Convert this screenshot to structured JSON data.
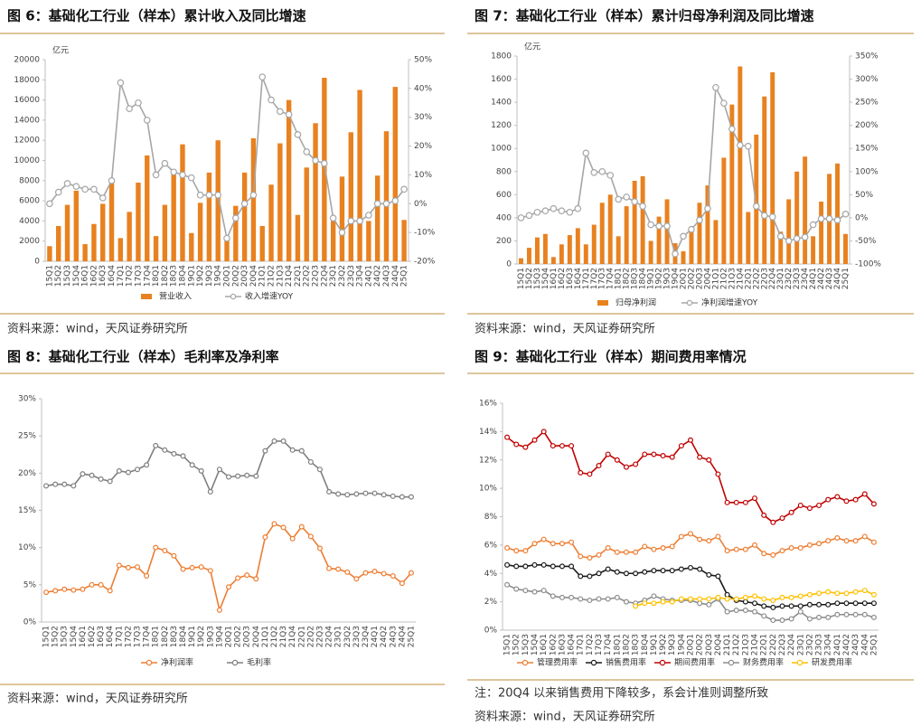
{
  "chart_data": [
    {
      "type": "combo",
      "title": "图 6：基础化工行业（样本）累计收入及同比增速",
      "y_label": "亿元",
      "source": "资料来源：wind，天风证券研究所",
      "categories": [
        "15Q1",
        "15Q2",
        "15Q3",
        "15Q4",
        "16Q1",
        "16Q2",
        "16Q3",
        "16Q4",
        "17Q1",
        "17Q2",
        "17Q3",
        "17Q4",
        "18Q1",
        "18Q2",
        "18Q3",
        "18Q4",
        "19Q1",
        "19Q2",
        "19Q3",
        "19Q4",
        "20Q1",
        "20Q2",
        "20Q3",
        "20Q4",
        "21Q1",
        "21Q2",
        "21Q3",
        "21Q4",
        "22Q1",
        "22Q2",
        "22Q3",
        "22Q4",
        "23Q1",
        "23Q2",
        "23Q3",
        "23Q4",
        "24Q1",
        "24Q2",
        "24Q3",
        "24Q4",
        "25Q1"
      ],
      "ylim": [
        0,
        20000
      ],
      "yticks": [
        0,
        2000,
        4000,
        6000,
        8000,
        10000,
        12000,
        14000,
        16000,
        18000,
        20000
      ],
      "y2lim": [
        -20,
        50
      ],
      "y2ticks": [
        {
          "value": -20,
          "label": "-20%"
        },
        {
          "value": -10,
          "label": "-10%"
        },
        {
          "value": 0,
          "label": "0%"
        },
        {
          "value": 10,
          "label": "10%"
        },
        {
          "value": 20,
          "label": "20%"
        },
        {
          "value": 30,
          "label": "30%"
        },
        {
          "value": 40,
          "label": "40%"
        },
        {
          "value": 50,
          "label": "50%"
        }
      ],
      "series": [
        {
          "name": "营业收入",
          "type": "bar",
          "color": "#e8811f",
          "values": [
            1500,
            3500,
            5600,
            7000,
            1700,
            3700,
            5700,
            7900,
            2300,
            4900,
            7800,
            10500,
            2500,
            5600,
            8700,
            11600,
            2800,
            5800,
            8800,
            12000,
            2200,
            5500,
            8800,
            12200,
            3500,
            7600,
            11700,
            16000,
            4600,
            9300,
            13700,
            18200,
            4000,
            8400,
            12800,
            17000,
            4000,
            8500,
            12900,
            17300,
            4100
          ]
        },
        {
          "name": "收入增速YOY",
          "type": "line",
          "axis": "y2",
          "color": "#a6a6a6",
          "values": [
            0,
            4,
            7,
            6,
            5,
            5,
            2,
            8,
            42,
            33,
            35,
            29,
            10,
            14,
            11,
            10,
            9,
            3,
            3,
            3,
            -12,
            -5,
            0,
            3,
            44,
            36,
            32,
            31,
            24,
            18,
            15,
            14,
            -5,
            -10,
            -6,
            -6,
            -4,
            0,
            0,
            1,
            5
          ]
        }
      ]
    },
    {
      "type": "combo",
      "title": "图 7：基础化工行业（样本）累计归母净利润及同比增速",
      "y_label": "亿元",
      "source": "资料来源：wind，天风证券研究所",
      "categories": [
        "15Q1",
        "15Q2",
        "15Q3",
        "15Q4",
        "16Q1",
        "16Q2",
        "16Q3",
        "16Q4",
        "17Q1",
        "17Q2",
        "17Q3",
        "17Q4",
        "18Q1",
        "18Q2",
        "18Q3",
        "18Q4",
        "19Q1",
        "19Q2",
        "19Q3",
        "19Q4",
        "20Q1",
        "20Q2",
        "20Q3",
        "20Q4",
        "21Q1",
        "21Q2",
        "21Q3",
        "21Q4",
        "22Q1",
        "22Q2",
        "22Q3",
        "22Q4",
        "23Q1",
        "23Q2",
        "23Q3",
        "23Q4",
        "24Q1",
        "24Q2",
        "24Q3",
        "24Q4",
        "25Q1"
      ],
      "ylim": [
        0,
        1800
      ],
      "yticks": [
        0,
        200,
        400,
        600,
        800,
        1000,
        1200,
        1400,
        1600,
        1800
      ],
      "y2lim": [
        -100,
        350
      ],
      "y2ticks": [
        {
          "value": -100,
          "label": "-100%"
        },
        {
          "value": -50,
          "label": "-50%"
        },
        {
          "value": 0,
          "label": "0%"
        },
        {
          "value": 50,
          "label": "50%"
        },
        {
          "value": 100,
          "label": "100%"
        },
        {
          "value": 150,
          "label": "150%"
        },
        {
          "value": 200,
          "label": "200%"
        },
        {
          "value": 250,
          "label": "250%"
        },
        {
          "value": 300,
          "label": "300%"
        },
        {
          "value": 350,
          "label": "350%"
        }
      ],
      "series": [
        {
          "name": "归母净利润",
          "type": "bar",
          "color": "#e8811f",
          "values": [
            50,
            140,
            230,
            260,
            60,
            170,
            250,
            310,
            170,
            340,
            530,
            600,
            240,
            500,
            720,
            760,
            200,
            410,
            560,
            180,
            110,
            310,
            530,
            680,
            380,
            920,
            1380,
            1710,
            450,
            1120,
            1450,
            1660,
            280,
            560,
            800,
            930,
            240,
            540,
            780,
            870,
            260
          ]
        },
        {
          "name": "净利润增速YOY",
          "type": "line",
          "axis": "y2",
          "color": "#a6a6a6",
          "values": [
            0,
            5,
            12,
            15,
            20,
            15,
            12,
            20,
            140,
            98,
            100,
            92,
            40,
            45,
            35,
            25,
            -15,
            -18,
            -18,
            -78,
            -40,
            -25,
            -5,
            20,
            282,
            248,
            192,
            157,
            155,
            25,
            5,
            2,
            -40,
            -50,
            -45,
            -42,
            -15,
            -2,
            -2,
            -5,
            8
          ]
        }
      ]
    },
    {
      "type": "line",
      "title": "图 8：基础化工行业（样本）毛利率及净利率",
      "source": "资料来源：wind，天风证券研究所",
      "categories": [
        "15Q1",
        "15Q2",
        "15Q3",
        "15Q4",
        "16Q1",
        "16Q2",
        "16Q3",
        "16Q4",
        "17Q1",
        "17Q2",
        "17Q3",
        "17Q4",
        "18Q1",
        "18Q2",
        "18Q3",
        "18Q4",
        "19Q1",
        "19Q2",
        "19Q3",
        "19Q4",
        "20Q1",
        "20Q2",
        "20Q3",
        "20Q4",
        "21Q1",
        "21Q2",
        "21Q3",
        "21Q4",
        "22Q1",
        "22Q2",
        "22Q3",
        "22Q4",
        "23Q1",
        "23Q2",
        "23Q3",
        "23Q4",
        "24Q1",
        "24Q2",
        "24Q3",
        "24Q4",
        "25Q1"
      ],
      "ylim": [
        0,
        30
      ],
      "yticks": [
        {
          "value": 0,
          "label": "0%"
        },
        {
          "value": 5,
          "label": "5%"
        },
        {
          "value": 10,
          "label": "10%"
        },
        {
          "value": 15,
          "label": "15%"
        },
        {
          "value": 20,
          "label": "20%"
        },
        {
          "value": 25,
          "label": "25%"
        },
        {
          "value": 30,
          "label": "30%"
        }
      ],
      "series": [
        {
          "name": "净利润率",
          "type": "line",
          "color": "#ed7d31",
          "values": [
            4.0,
            4.2,
            4.4,
            4.3,
            4.4,
            5.0,
            5.0,
            4.2,
            7.6,
            7.3,
            7.4,
            6.2,
            10.0,
            9.6,
            8.9,
            7.1,
            7.3,
            7.4,
            6.9,
            1.6,
            4.7,
            5.9,
            6.3,
            5.8,
            11.4,
            13.2,
            12.7,
            11.2,
            12.8,
            11.5,
            9.9,
            7.2,
            7.1,
            6.7,
            5.8,
            6.6,
            6.8,
            6.5,
            6.2,
            5.2,
            6.6
          ]
        },
        {
          "name": "毛利率",
          "type": "line",
          "color": "#7f7f7f",
          "values": [
            18.3,
            18.5,
            18.5,
            18.3,
            19.9,
            19.7,
            19.2,
            18.9,
            20.3,
            20.1,
            20.5,
            21.1,
            23.7,
            23.1,
            22.6,
            22.3,
            21.1,
            20.3,
            17.5,
            20.5,
            19.5,
            19.6,
            19.7,
            19.6,
            23.0,
            24.3,
            24.3,
            23.1,
            23.0,
            21.5,
            20.5,
            17.5,
            17.2,
            17.1,
            17.2,
            17.3,
            17.3,
            17.1,
            16.9,
            16.8,
            16.8
          ]
        }
      ]
    },
    {
      "type": "line",
      "title": "图 9：基础化工行业（样本）期间费用率情况",
      "note": "注：20Q4 以来销售费用下降较多，系会计准则调整所致",
      "source": "资料来源：wind，天风证券研究所",
      "categories": [
        "15Q1",
        "15Q2",
        "15Q3",
        "15Q4",
        "16Q1",
        "16Q2",
        "16Q3",
        "16Q4",
        "17Q1",
        "17Q2",
        "17Q3",
        "17Q4",
        "18Q1",
        "18Q2",
        "18Q3",
        "18Q4",
        "19Q1",
        "19Q2",
        "19Q3",
        "19Q4",
        "20Q1",
        "20Q2",
        "20Q3",
        "20Q4",
        "21Q1",
        "21Q2",
        "21Q3",
        "21Q4",
        "22Q1",
        "22Q2",
        "22Q3",
        "22Q4",
        "23Q1",
        "23Q2",
        "23Q3",
        "23Q4",
        "24Q1",
        "24Q2",
        "24Q3",
        "24Q4",
        "25Q1"
      ],
      "ylim": [
        0,
        16
      ],
      "yticks": [
        {
          "value": 0,
          "label": "0%"
        },
        {
          "value": 2,
          "label": "2%"
        },
        {
          "value": 4,
          "label": "4%"
        },
        {
          "value": 6,
          "label": "6%"
        },
        {
          "value": 8,
          "label": "8%"
        },
        {
          "value": 10,
          "label": "10%"
        },
        {
          "value": 12,
          "label": "12%"
        },
        {
          "value": 14,
          "label": "14%"
        },
        {
          "value": 16,
          "label": "16%"
        }
      ],
      "series": [
        {
          "name": "管理费用率",
          "type": "line",
          "color": "#ed7d31",
          "values": [
            5.8,
            5.6,
            5.6,
            6.1,
            6.4,
            6.1,
            6.1,
            6.2,
            5.2,
            5.1,
            5.3,
            5.8,
            5.5,
            5.5,
            5.5,
            5.9,
            5.7,
            5.8,
            5.9,
            6.6,
            6.8,
            6.4,
            6.3,
            6.6,
            5.6,
            5.7,
            5.7,
            6.0,
            5.4,
            5.3,
            5.6,
            5.8,
            5.8,
            6.0,
            6.1,
            6.3,
            6.5,
            6.3,
            6.3,
            6.6,
            6.2
          ]
        },
        {
          "name": "销售费用率",
          "type": "line",
          "color": "#1a1a1a",
          "values": [
            4.6,
            4.5,
            4.5,
            4.6,
            4.6,
            4.5,
            4.5,
            4.5,
            3.8,
            3.8,
            4.0,
            4.3,
            4.1,
            4.0,
            4.0,
            4.1,
            4.2,
            4.2,
            4.2,
            4.3,
            4.4,
            4.3,
            3.9,
            3.8,
            2.5,
            2.1,
            2.0,
            1.9,
            1.7,
            1.6,
            1.7,
            1.7,
            1.7,
            1.8,
            1.8,
            1.8,
            1.9,
            1.9,
            1.9,
            1.9,
            1.9
          ]
        },
        {
          "name": "期间费用率",
          "type": "line",
          "color": "#c00000",
          "values": [
            13.6,
            13.1,
            12.9,
            13.4,
            14.0,
            13.0,
            13.0,
            13.0,
            11.1,
            11.0,
            11.6,
            12.4,
            12.0,
            11.5,
            11.7,
            12.4,
            12.4,
            12.3,
            12.2,
            13.0,
            13.4,
            12.2,
            12.0,
            11.0,
            9.0,
            9.0,
            9.0,
            9.3,
            8.1,
            7.6,
            7.9,
            8.3,
            8.8,
            8.6,
            8.8,
            9.2,
            9.4,
            9.1,
            9.2,
            9.6,
            8.9
          ]
        },
        {
          "name": "财务费用率",
          "type": "line",
          "color": "#8c8c8c",
          "values": [
            3.2,
            2.9,
            2.8,
            2.7,
            2.8,
            2.4,
            2.3,
            2.3,
            2.2,
            2.1,
            2.2,
            2.2,
            2.3,
            2.0,
            1.9,
            2.1,
            2.4,
            2.2,
            2.1,
            2.1,
            2.1,
            1.9,
            1.8,
            2.2,
            1.3,
            1.4,
            1.4,
            1.3,
            1.0,
            0.7,
            0.7,
            0.8,
            1.3,
            0.8,
            0.9,
            0.9,
            1.1,
            1.1,
            1.1,
            1.1,
            0.9
          ]
        },
        {
          "name": "研发费用率",
          "type": "line",
          "color": "#ffc000",
          "values": [
            null,
            null,
            null,
            null,
            null,
            null,
            null,
            null,
            null,
            null,
            null,
            null,
            null,
            null,
            1.7,
            1.9,
            1.9,
            2.0,
            2.0,
            2.2,
            2.2,
            2.2,
            2.2,
            2.3,
            2.2,
            2.2,
            2.3,
            2.4,
            2.2,
            2.1,
            2.3,
            2.3,
            2.4,
            2.5,
            2.6,
            2.7,
            2.6,
            2.6,
            2.7,
            2.8,
            2.5
          ]
        }
      ]
    }
  ]
}
